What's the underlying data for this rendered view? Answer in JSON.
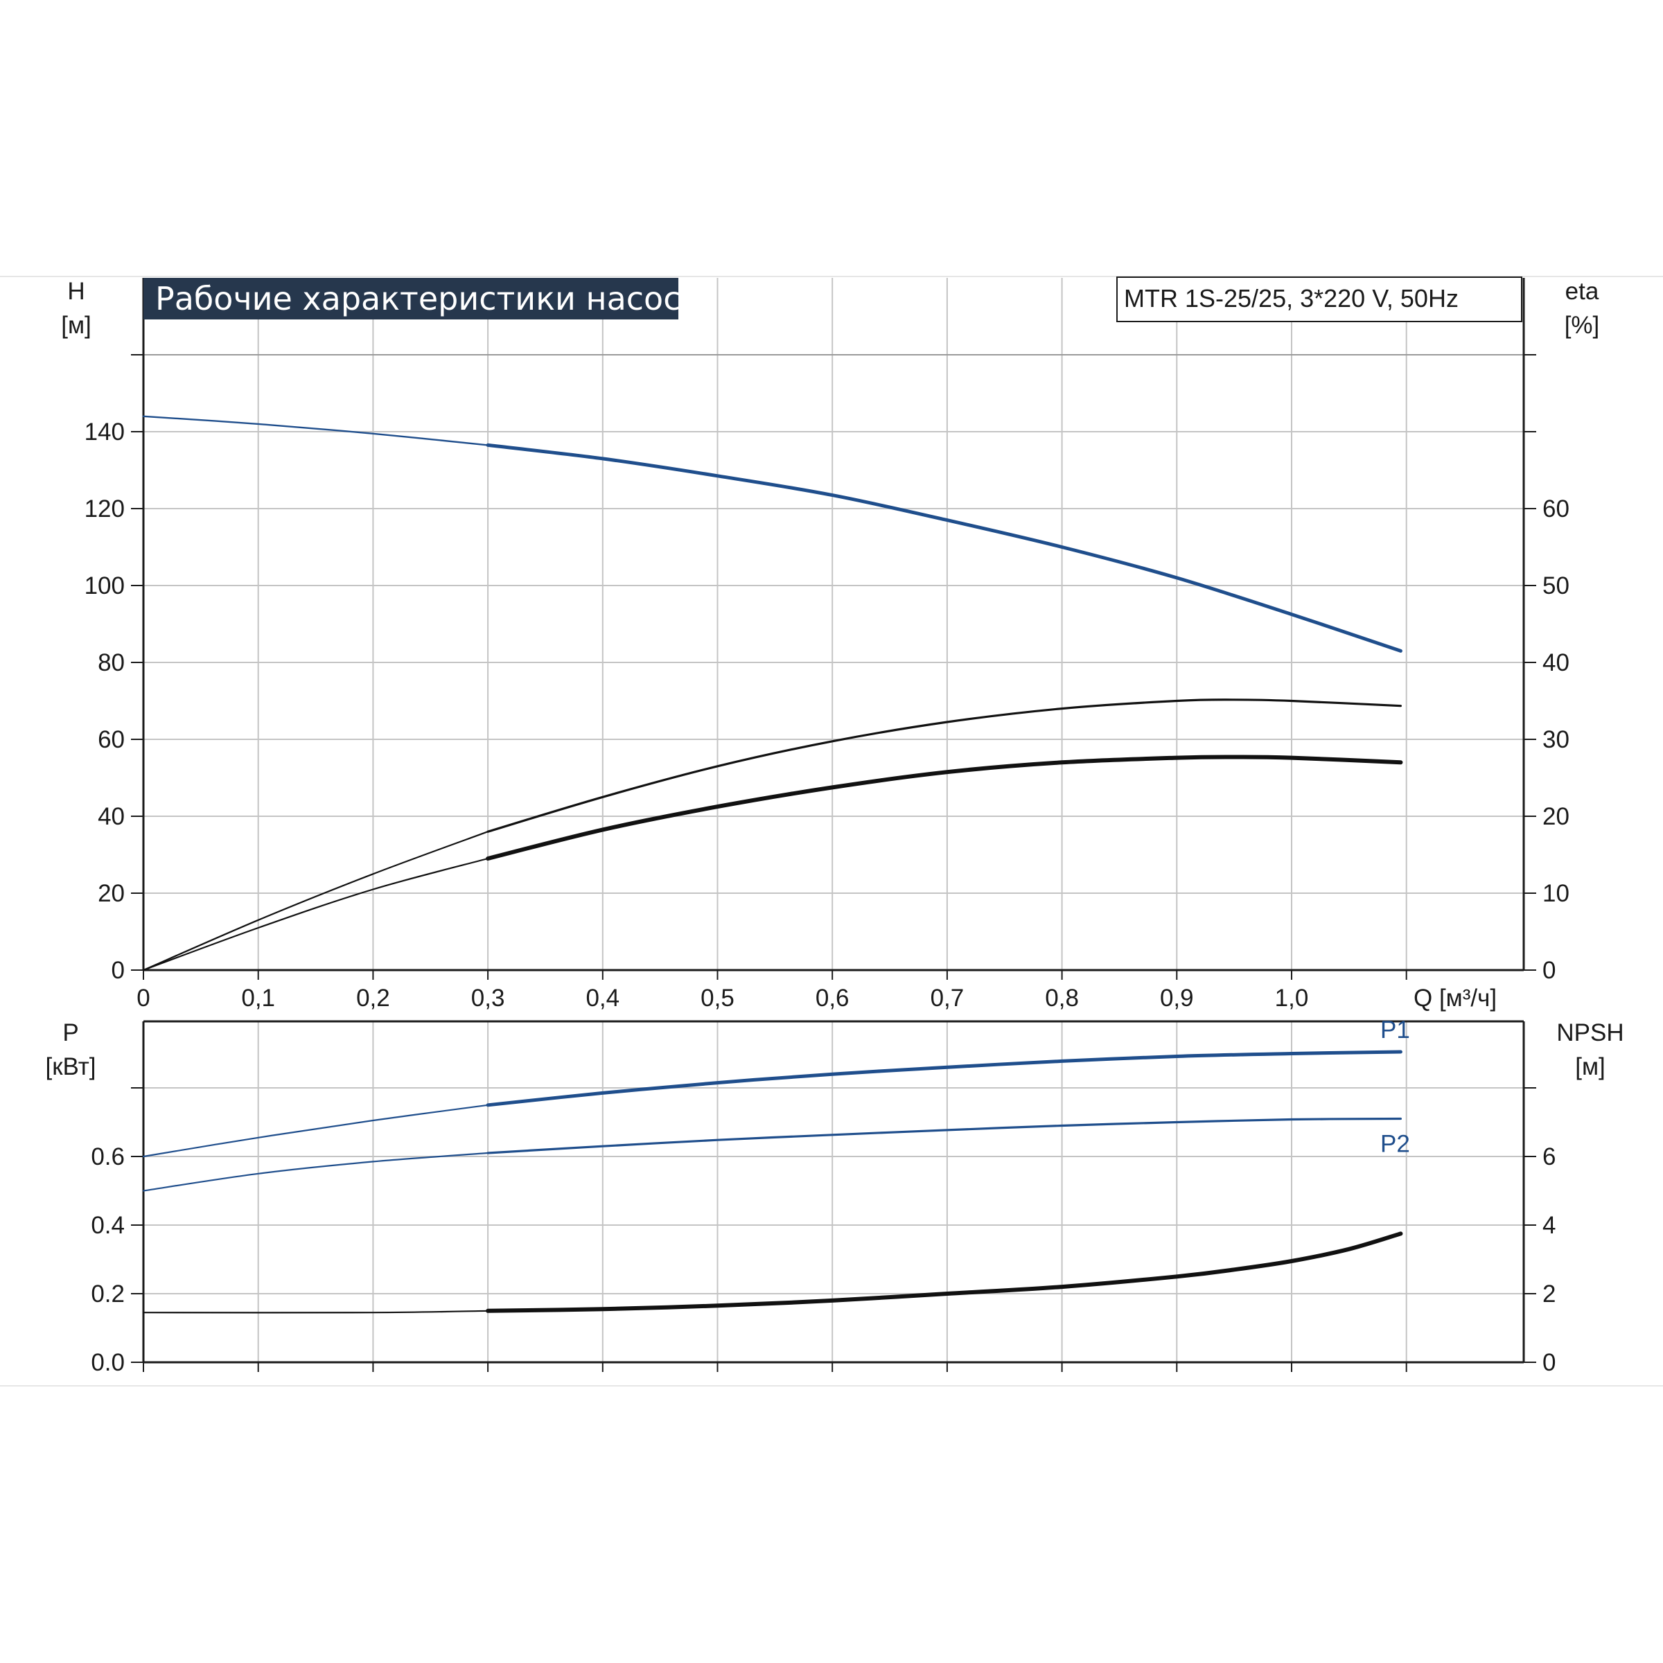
{
  "chart_data": [
    {
      "type": "line",
      "title": "Рабочие характеристики насоса",
      "model": "MTR 1S-25/25, 3*220 V, 50Hz",
      "xlabel": "Q [м³/ч]",
      "xlim": [
        0,
        1.2
      ],
      "x_ticks": [
        "0",
        "0,1",
        "0,2",
        "0,3",
        "0,4",
        "0,5",
        "0,6",
        "0,7",
        "0,8",
        "0,9",
        "1,0"
      ],
      "left_axis": {
        "label": "H",
        "unit": "[м]",
        "ylim": [
          0,
          160
        ],
        "ticks": [
          "0",
          "20",
          "40",
          "60",
          "80",
          "100",
          "120",
          "140"
        ]
      },
      "right_axis": {
        "label": "eta",
        "unit": "[%]",
        "ylim": [
          0,
          80
        ],
        "ticks": [
          "0",
          "10",
          "20",
          "30",
          "40",
          "50",
          "60"
        ]
      },
      "grid": true,
      "series": [
        {
          "axis": "left",
          "color": "#1f4e8c",
          "x": [
            0,
            0.1,
            0.2,
            0.3,
            0.4,
            0.5,
            0.6,
            0.7,
            0.8,
            0.9,
            1.0,
            1.095
          ],
          "values": [
            144,
            142,
            139.5,
            136.5,
            133,
            128.5,
            123.5,
            117,
            110,
            102,
            92.5,
            83
          ]
        },
        {
          "axis": "left",
          "color": "#111111",
          "x": [
            0,
            0.1,
            0.2,
            0.3,
            0.4,
            0.5,
            0.6,
            0.7,
            0.8,
            0.9,
            0.95,
            1.0,
            1.095
          ],
          "values": [
            0,
            13,
            25,
            36,
            45,
            53,
            59.5,
            64.5,
            68,
            70,
            70.3,
            70,
            68.7
          ]
        },
        {
          "axis": "left",
          "color": "#111111",
          "x": [
            0,
            0.1,
            0.2,
            0.3,
            0.4,
            0.5,
            0.6,
            0.7,
            0.8,
            0.9,
            0.95,
            1.0,
            1.095
          ],
          "values": [
            0,
            11,
            21,
            29,
            36.5,
            42.5,
            47.5,
            51.5,
            54,
            55.2,
            55.4,
            55.2,
            54
          ]
        }
      ]
    },
    {
      "type": "line",
      "xlim": [
        0,
        1.2
      ],
      "left_axis": {
        "label": "P",
        "unit": "[кВт]",
        "ylim": [
          0,
          0.98
        ],
        "ticks": [
          "0.0",
          "0.2",
          "0.4",
          "0.6"
        ]
      },
      "right_axis": {
        "label": "NPSH",
        "unit": "[м]",
        "ylim": [
          0,
          9.8
        ],
        "ticks": [
          "0",
          "2",
          "4",
          "6"
        ]
      },
      "grid": true,
      "series": [
        {
          "name": "P1",
          "axis": "left",
          "color": "#1f4e8c",
          "x": [
            0,
            0.1,
            0.2,
            0.3,
            0.4,
            0.5,
            0.6,
            0.7,
            0.8,
            0.9,
            1.0,
            1.095
          ],
          "values": [
            0.6,
            0.655,
            0.705,
            0.75,
            0.785,
            0.815,
            0.84,
            0.86,
            0.878,
            0.892,
            0.9,
            0.905
          ]
        },
        {
          "name": "P2",
          "axis": "left",
          "color": "#1f4e8c",
          "x": [
            0,
            0.1,
            0.2,
            0.3,
            0.4,
            0.5,
            0.6,
            0.7,
            0.8,
            0.9,
            1.0,
            1.095
          ],
          "values": [
            0.5,
            0.55,
            0.585,
            0.61,
            0.63,
            0.648,
            0.663,
            0.677,
            0.69,
            0.7,
            0.708,
            0.71
          ]
        },
        {
          "axis": "right",
          "color": "#111111",
          "x": [
            0,
            0.2,
            0.3,
            0.4,
            0.5,
            0.6,
            0.7,
            0.8,
            0.9,
            0.95,
            1.0,
            1.05,
            1.095
          ],
          "values": [
            1.45,
            1.45,
            1.5,
            1.55,
            1.65,
            1.8,
            2.0,
            2.2,
            2.5,
            2.7,
            2.95,
            3.3,
            3.75
          ]
        }
      ]
    }
  ]
}
